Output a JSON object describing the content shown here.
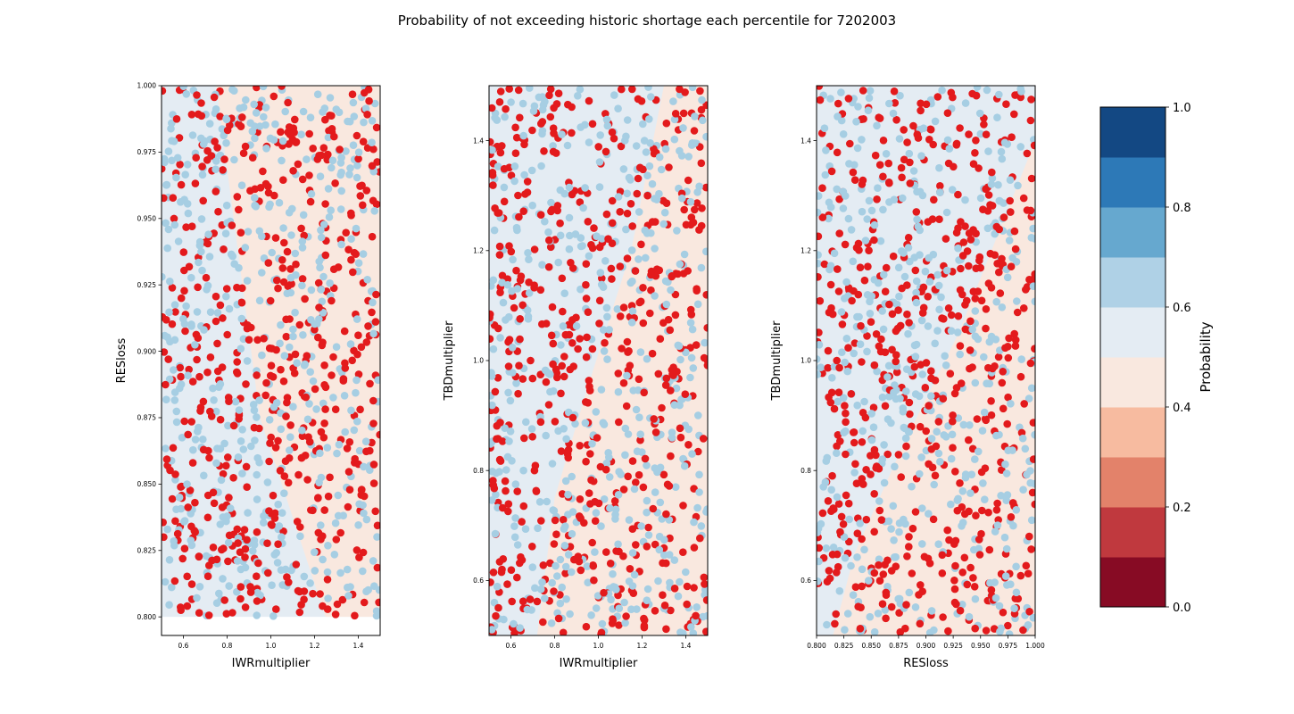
{
  "figure": {
    "title": "Probability of not exceeding historic shortage each percentile for 7202003"
  },
  "colors": {
    "success_point": "#a6cee3",
    "failure_point": "#e31a1c",
    "region_high": "#e4ecf3",
    "region_low": "#f9e8df"
  },
  "chart_data": [
    {
      "type": "scatter",
      "xlabel": "IWRmultiplier",
      "ylabel": "RESloss",
      "xlim": [
        0.5,
        1.5
      ],
      "ylim": [
        0.793,
        1.0
      ],
      "x_ticks": [
        "0.6",
        "0.8",
        "1.0",
        "1.2",
        "1.4"
      ],
      "x_tick_values": [
        0.6,
        0.8,
        1.0,
        1.2,
        1.4
      ],
      "y_ticks": [
        "0.800",
        "0.825",
        "0.850",
        "0.875",
        "0.900",
        "0.925",
        "0.950",
        "0.975",
        "1.000"
      ],
      "y_tick_values": [
        0.8,
        0.825,
        0.85,
        0.875,
        0.9,
        0.925,
        0.95,
        0.975,
        1.0
      ],
      "sample_x_range": [
        0.5,
        1.5
      ],
      "sample_y_range": [
        0.8,
        1.0
      ],
      "boundary": [
        [
          0.75,
          1.0
        ],
        [
          0.95,
          0.875
        ],
        [
          1.25,
          0.8
        ]
      ],
      "n_success": 480,
      "n_failure": 520,
      "seed": 11
    },
    {
      "type": "scatter",
      "xlabel": "IWRmultiplier",
      "ylabel": "TBDmultiplier",
      "xlim": [
        0.5,
        1.5
      ],
      "ylim": [
        0.5,
        1.5
      ],
      "x_ticks": [
        "0.6",
        "0.8",
        "1.0",
        "1.2",
        "1.4"
      ],
      "x_tick_values": [
        0.6,
        0.8,
        1.0,
        1.2,
        1.4
      ],
      "y_ticks": [
        "0.6",
        "0.8",
        "1.0",
        "1.2",
        "1.4"
      ],
      "y_tick_values": [
        0.6,
        0.8,
        1.0,
        1.2,
        1.4
      ],
      "sample_x_range": [
        0.5,
        1.5
      ],
      "sample_y_range": [
        0.5,
        1.5
      ],
      "boundary": [
        [
          1.3,
          1.5
        ],
        [
          1.15,
          1.2
        ],
        [
          0.95,
          0.95
        ],
        [
          0.8,
          0.75
        ],
        [
          0.72,
          0.5
        ]
      ],
      "n_success": 470,
      "n_failure": 530,
      "seed": 23
    },
    {
      "type": "scatter",
      "xlabel": "RESloss",
      "ylabel": "TBDmultiplier",
      "xlim": [
        0.8,
        1.0
      ],
      "ylim": [
        0.5,
        1.5
      ],
      "x_ticks": [
        "0.800",
        "0.825",
        "0.850",
        "0.875",
        "0.900",
        "0.925",
        "0.950",
        "0.975",
        "1.000"
      ],
      "x_tick_values": [
        0.8,
        0.825,
        0.85,
        0.875,
        0.9,
        0.925,
        0.95,
        0.975,
        1.0
      ],
      "y_ticks": [
        "0.6",
        "0.8",
        "1.0",
        "1.2",
        "1.4"
      ],
      "y_tick_values": [
        0.6,
        0.8,
        1.0,
        1.2,
        1.4
      ],
      "sample_x_range": [
        0.8,
        1.0
      ],
      "sample_y_range": [
        0.5,
        1.5
      ],
      "boundary": [
        [
          1.0,
          1.4
        ],
        [
          0.97,
          1.25
        ],
        [
          0.93,
          1.05
        ],
        [
          0.88,
          0.85
        ],
        [
          0.835,
          0.65
        ],
        [
          0.815,
          0.5
        ]
      ],
      "n_success": 460,
      "n_failure": 540,
      "seed": 37
    }
  ],
  "colorbar": {
    "label": "Probability",
    "ticks": [
      "0.0",
      "0.2",
      "0.4",
      "0.6",
      "0.8",
      "1.0"
    ],
    "tick_values": [
      0.0,
      0.2,
      0.4,
      0.6,
      0.8,
      1.0
    ],
    "range": [
      0.0,
      1.0
    ],
    "colors": [
      "#870b24",
      "#c0393e",
      "#e3826a",
      "#f7bba0",
      "#f9e8df",
      "#e4ecf3",
      "#afd1e6",
      "#66a8cf",
      "#2d79b7",
      "#134883"
    ]
  }
}
